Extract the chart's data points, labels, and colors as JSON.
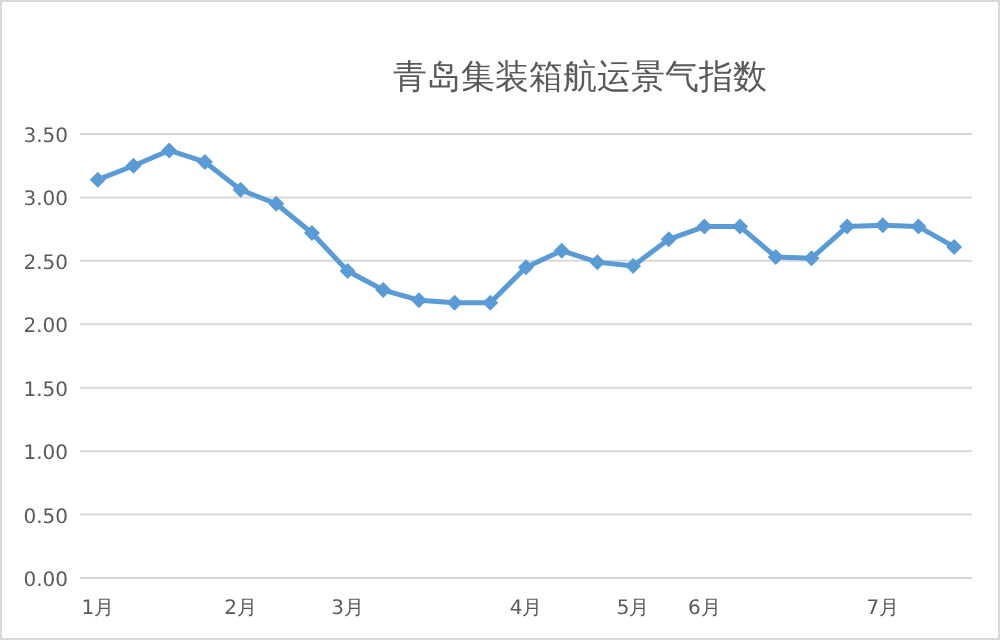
{
  "chart_data": {
    "type": "line",
    "title": "青岛集装箱航运景气指数",
    "categories": [
      "1月",
      null,
      null,
      null,
      "2月",
      null,
      null,
      "3月",
      null,
      null,
      null,
      null,
      "4月",
      null,
      null,
      "5月",
      null,
      "6月",
      null,
      null,
      null,
      null,
      "7月",
      null,
      null
    ],
    "series": [
      {
        "color": "#5b9bd5",
        "values": [
          3.14,
          3.25,
          3.37,
          3.28,
          3.06,
          2.95,
          2.72,
          2.42,
          2.27,
          2.19,
          2.17,
          2.17,
          2.45,
          2.58,
          2.49,
          2.46,
          2.67,
          2.77,
          2.77,
          2.53,
          2.52,
          2.77,
          2.78,
          2.77,
          2.61
        ]
      }
    ],
    "ylim": [
      0,
      3.5
    ],
    "yticks": [
      {
        "value": 0,
        "label": "0.00"
      },
      {
        "value": 0.5,
        "label": "0.50"
      },
      {
        "value": 1,
        "label": "1.00"
      },
      {
        "value": 1.5,
        "label": "1.50"
      },
      {
        "value": 2,
        "label": "2.00"
      },
      {
        "value": 2.5,
        "label": "2.50"
      },
      {
        "value": 3,
        "label": "3.00"
      },
      {
        "value": 3.5,
        "label": "3.50"
      }
    ],
    "grid": "y",
    "marker": "diamond",
    "line_style": "solid"
  }
}
